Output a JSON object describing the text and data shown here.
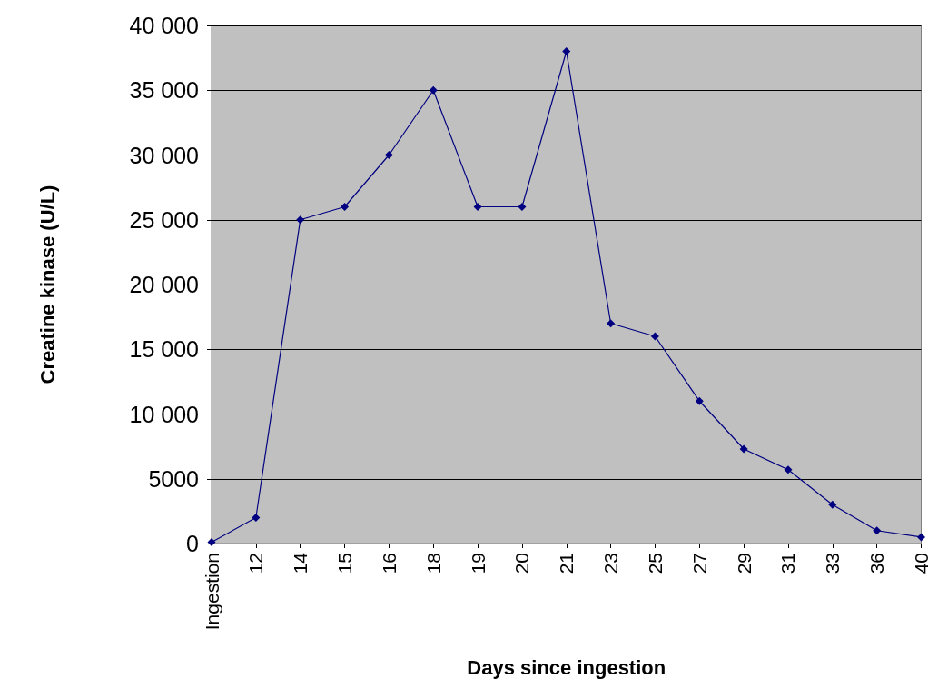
{
  "chart_data": {
    "type": "line",
    "xlabel": "Days since ingestion",
    "ylabel": "Creatine kinase (U/L)",
    "categories": [
      "Ingestion",
      "12",
      "14",
      "15",
      "16",
      "18",
      "19",
      "20",
      "21",
      "23",
      "25",
      "27",
      "29",
      "31",
      "33",
      "36",
      "40"
    ],
    "series": [
      {
        "color": "#000080",
        "values": [
          100,
          2000,
          25000,
          26000,
          30000,
          35000,
          26000,
          26000,
          38000,
          17000,
          16000,
          11000,
          7300,
          5700,
          3000,
          1000,
          500
        ]
      }
    ],
    "ylim": [
      0,
      40000
    ],
    "yticks": [
      0,
      5000,
      {
        "value": 10000,
        "label": "10 000"
      },
      {
        "value": 15000,
        "label": "15 000"
      },
      {
        "value": 20000,
        "label": "20 000"
      },
      {
        "value": 25000,
        "label": "25 000"
      },
      {
        "value": 30000,
        "label": "30 000"
      },
      {
        "value": 35000,
        "label": "35 000"
      },
      {
        "value": 40000,
        "label": "40 000"
      }
    ],
    "grid": "y",
    "marker": "diamond",
    "line_style": "solid"
  }
}
